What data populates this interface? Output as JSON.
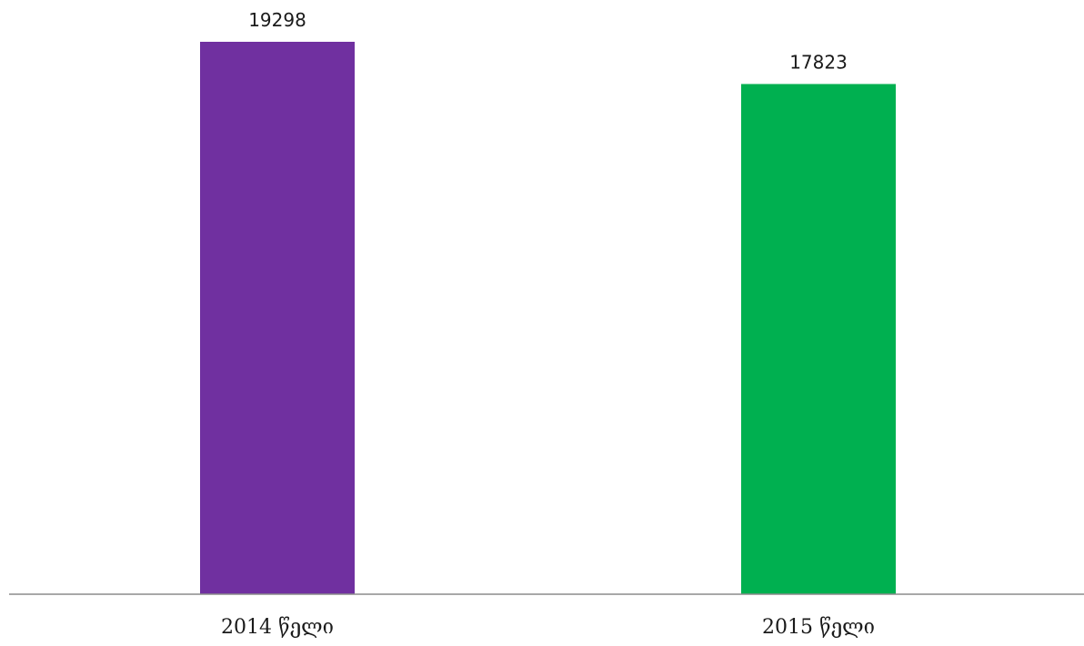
{
  "chart_data": {
    "type": "bar",
    "categories": [
      "2014 წელი",
      "2015 წელი"
    ],
    "values": [
      19298,
      17823
    ],
    "colors": [
      "#7030a0",
      "#00b050"
    ],
    "title": "",
    "xlabel": "",
    "ylabel": "",
    "ylim": [
      0,
      19298
    ],
    "grid": false,
    "legend": "none",
    "data_labels": [
      "19298",
      "17823"
    ]
  }
}
